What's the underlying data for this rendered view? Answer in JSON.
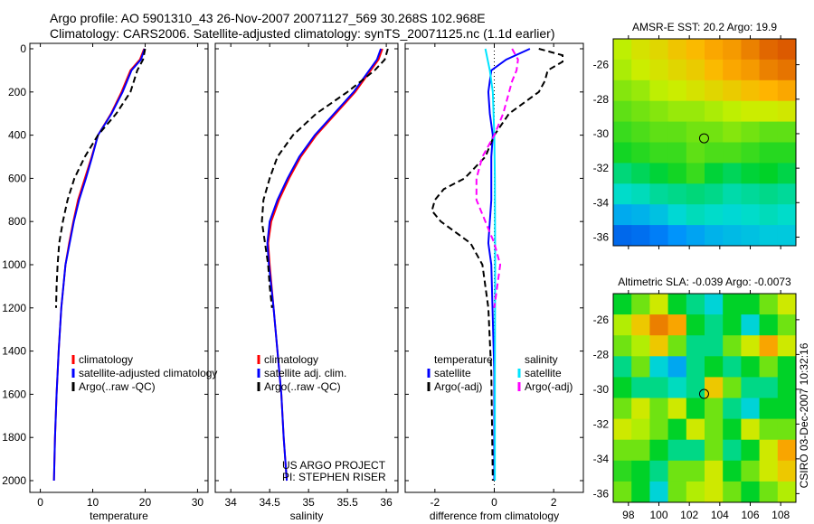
{
  "header": {
    "line1": "Argo profile: AO 5901310_43 26-Nov-2007 20071127_569 30.268S 102.968E",
    "line2": "Climatology: CARS2006. Satellite-adjusted climatology: synTS_20071125.nc (1.1d earlier)"
  },
  "watermark": {
    "project": "US ARGO PROJECT",
    "pi": "PI: STEPHEN RISER",
    "credit": "CSIRO 03-Dec-2007 10:32:16"
  },
  "colors": {
    "clim": "#ff0000",
    "sat": "#0000ff",
    "argo": "#000000",
    "sal_sat": "#00e5ff",
    "sal_argo": "#ff00ff"
  },
  "chart_data": [
    {
      "type": "line",
      "xlabel": "temperature",
      "xlim": [
        -2,
        32
      ],
      "xticks": [
        0,
        10,
        20,
        30
      ],
      "ylim": [
        2050,
        0
      ],
      "yticks": [
        0,
        200,
        400,
        600,
        800,
        1000,
        1200,
        1400,
        1600,
        1800,
        2000
      ],
      "legend": [
        "climatology",
        "satellite-adjusted climatology",
        "Argo(..raw -QC)"
      ],
      "series": [
        {
          "name": "climatology",
          "style": "clim",
          "depth": [
            0,
            50,
            100,
            200,
            300,
            400,
            500,
            600,
            700,
            800,
            900,
            1000,
            1200,
            1400,
            1600,
            1800,
            2000
          ],
          "values": [
            19.8,
            19,
            17.2,
            15.5,
            13.5,
            11,
            9.8,
            8.5,
            7.2,
            6.3,
            5.5,
            4.8,
            4,
            3.5,
            3.1,
            2.8,
            2.6
          ]
        },
        {
          "name": "satellite-adjusted climatology",
          "style": "sat",
          "depth": [
            0,
            50,
            100,
            200,
            300,
            400,
            500,
            600,
            700,
            800,
            900,
            1000,
            1200,
            1400,
            1600,
            1800,
            2000
          ],
          "values": [
            19.9,
            19.2,
            17.4,
            15.7,
            13.6,
            11,
            9.9,
            8.7,
            7.4,
            6.4,
            5.6,
            4.8,
            4,
            3.5,
            3.1,
            2.8,
            2.6
          ]
        },
        {
          "name": "Argo(..raw -QC)",
          "style": "argo",
          "depth": [
            0,
            50,
            100,
            200,
            300,
            400,
            500,
            600,
            700,
            800,
            900,
            1000,
            1100,
            1200
          ],
          "values": [
            20,
            19.6,
            18.5,
            17.2,
            14.5,
            11,
            8.5,
            6.5,
            5.2,
            4.3,
            3.6,
            3.3,
            3.1,
            3.0
          ]
        }
      ]
    },
    {
      "type": "line",
      "xlabel": "salinity",
      "xlim": [
        33.8,
        36.15
      ],
      "xticks": [
        34,
        34.5,
        35,
        35.5,
        36
      ],
      "ylim": [
        2050,
        0
      ],
      "legend": [
        "climatology",
        "satellite adj. clim.",
        "Argo(..raw -QC)"
      ],
      "series": [
        {
          "name": "climatology",
          "style": "clim",
          "depth": [
            0,
            50,
            100,
            200,
            300,
            400,
            500,
            600,
            700,
            800,
            900,
            1000,
            1200,
            1400,
            1600,
            1800,
            2000
          ],
          "values": [
            35.95,
            35.9,
            35.8,
            35.6,
            35.35,
            35.1,
            34.9,
            34.75,
            34.62,
            34.52,
            34.48,
            34.5,
            34.55,
            34.6,
            34.65,
            34.68,
            34.72
          ]
        },
        {
          "name": "satellite adj. clim.",
          "style": "sat",
          "depth": [
            0,
            50,
            100,
            200,
            300,
            400,
            500,
            600,
            700,
            800,
            900,
            1000,
            1200,
            1400,
            1600,
            1800,
            2000
          ],
          "values": [
            35.93,
            35.88,
            35.78,
            35.58,
            35.33,
            35.08,
            34.88,
            34.73,
            34.6,
            34.5,
            34.47,
            34.49,
            34.55,
            34.6,
            34.65,
            34.68,
            34.72
          ]
        },
        {
          "name": "Argo(..raw -QC)",
          "style": "argo",
          "depth": [
            0,
            50,
            100,
            200,
            300,
            400,
            500,
            600,
            700,
            800,
            900,
            1000,
            1100,
            1200
          ],
          "values": [
            36.02,
            35.98,
            35.85,
            35.5,
            35.1,
            34.8,
            34.6,
            34.5,
            34.42,
            34.4,
            34.44,
            34.48,
            34.5,
            34.53
          ]
        }
      ]
    },
    {
      "type": "line",
      "xlabel": "difference from climatology",
      "xlim": [
        -3,
        3
      ],
      "xticks": [
        -2,
        0,
        2
      ],
      "ylim": [
        2050,
        0
      ],
      "legend": [
        "temperature",
        "satellite",
        "Argo(-adj)",
        "salinity",
        "satellite",
        "Argo(-adj)"
      ],
      "series": [
        {
          "name": "temperature satellite",
          "style": "sat",
          "depth": [
            0,
            50,
            100,
            200,
            300,
            400,
            500,
            700,
            900,
            1000,
            1500,
            2000
          ],
          "values": [
            1.2,
            0.4,
            -0.1,
            -0.2,
            -0.15,
            -0.05,
            -0.1,
            -0.1,
            -0.2,
            -0.1,
            0,
            0
          ]
        },
        {
          "name": "temperature Argo(-adj)",
          "style": "argo",
          "depth": [
            0,
            30,
            60,
            100,
            150,
            200,
            300,
            400,
            500,
            600,
            650,
            700,
            750,
            800,
            900,
            1000,
            1200,
            1500,
            2000
          ],
          "values": [
            1.5,
            2.3,
            2.3,
            1.8,
            1.7,
            1.5,
            0.5,
            0,
            -0.3,
            -1,
            -1.7,
            -2,
            -2.1,
            -1.8,
            -0.8,
            -0.4,
            -0.2,
            -0.1,
            -0.05
          ]
        },
        {
          "name": "salinity satellite",
          "style": "sal_sat",
          "depth": [
            0,
            100,
            200,
            400,
            600,
            1000,
            1500,
            2000
          ],
          "values": [
            -0.3,
            -0.15,
            -0.05,
            0,
            0.02,
            0.03,
            0.02,
            0.02
          ]
        },
        {
          "name": "salinity Argo(-adj)",
          "style": "sal_argo",
          "depth": [
            0,
            50,
            100,
            150,
            200,
            300,
            400,
            500,
            600,
            700,
            800,
            900,
            1000,
            1100,
            1200
          ],
          "values": [
            0.6,
            0.8,
            0.75,
            0.6,
            0.5,
            0.3,
            0,
            -0.4,
            -0.6,
            -0.6,
            -0.3,
            0,
            0.2,
            0.1,
            0
          ]
        }
      ]
    },
    {
      "type": "heatmap",
      "title": "AMSR-E SST: 20.2 Argo: 19.9",
      "xticks": [
        98,
        100,
        102,
        104,
        106,
        108
      ],
      "yticks": [
        -26,
        -28,
        -30,
        -32,
        -34,
        -36
      ],
      "lon": [
        97,
        109
      ],
      "lat": [
        -24.5,
        -36.5
      ],
      "marker": [
        102.968,
        -30.268
      ],
      "range": [
        16,
        23
      ],
      "grid": [
        [
          20.5,
          20.8,
          21,
          21.3,
          21.5,
          21.8,
          22,
          22.4,
          22.8,
          23
        ],
        [
          20.4,
          20.6,
          20.8,
          21,
          21.2,
          21.5,
          21.8,
          22,
          22.4,
          22.6
        ],
        [
          20.2,
          20.3,
          20.5,
          20.6,
          20.8,
          21,
          21.2,
          21.4,
          21.6,
          21.8
        ],
        [
          20,
          20.1,
          20.2,
          20.3,
          20.3,
          20.4,
          20.5,
          20.6,
          20.6,
          20.7
        ],
        [
          19.8,
          19.9,
          20,
          20,
          20.1,
          20.1,
          20.2,
          20.1,
          20,
          20
        ],
        [
          19.6,
          19.7,
          19.8,
          19.8,
          20,
          19.9,
          19.9,
          19.8,
          19.7,
          19.7
        ],
        [
          19,
          19.2,
          19.4,
          19.6,
          19.8,
          19.4,
          19.2,
          19.4,
          19.5,
          19.3
        ],
        [
          18.5,
          18.6,
          18.8,
          18.9,
          19,
          18.9,
          18.7,
          18.8,
          18.9,
          18.8
        ],
        [
          17.8,
          17.9,
          18.1,
          18.4,
          18.6,
          18.5,
          18.4,
          18.5,
          18.6,
          18.5
        ],
        [
          16.9,
          17,
          17.2,
          17.5,
          17.7,
          17.9,
          18,
          18.1,
          18.2,
          18.2
        ]
      ]
    },
    {
      "type": "heatmap",
      "title": "Altimetric SLA: -0.039 Argo: -0.0073",
      "xticks": [
        98,
        100,
        102,
        104,
        106,
        108
      ],
      "yticks": [
        -26,
        -28,
        -30,
        -32,
        -34,
        -36
      ],
      "lon": [
        97,
        109
      ],
      "lat": [
        -24.5,
        -36.5
      ],
      "marker": [
        102.968,
        -30.268
      ],
      "range": [
        -0.3,
        0.3
      ],
      "grid": [
        [
          0,
          0.05,
          0.1,
          0,
          -0.05,
          -0.1,
          0,
          0,
          0.05,
          0.1
        ],
        [
          0.08,
          0.15,
          0.25,
          0.2,
          0,
          -0.05,
          0,
          -0.1,
          0,
          0.05
        ],
        [
          0.05,
          0.08,
          0.15,
          0.05,
          -0.05,
          -0.05,
          0.05,
          0.1,
          0.2,
          0.1
        ],
        [
          -0.05,
          0.05,
          -0.1,
          -0.15,
          -0.05,
          0,
          -0.05,
          0,
          0.05,
          0
        ],
        [
          0,
          -0.05,
          -0.05,
          -0.08,
          -0.05,
          0.15,
          0.05,
          -0.05,
          -0.05,
          0
        ],
        [
          0.05,
          0.1,
          0.05,
          0.1,
          0,
          0.05,
          -0.05,
          -0.1,
          0,
          0
        ],
        [
          0.1,
          0.08,
          0.05,
          0,
          0.1,
          0.05,
          0,
          0.1,
          0.05,
          0.05
        ],
        [
          0.05,
          0.05,
          0,
          -0.05,
          -0.05,
          0.05,
          -0.05,
          0,
          0.1,
          0.2
        ],
        [
          0.02,
          0,
          -0.05,
          0.05,
          0.05,
          0.1,
          0,
          0.05,
          0.1,
          0.15
        ],
        [
          0.05,
          0,
          -0.1,
          0.05,
          0.08,
          0.1,
          0.05,
          0,
          0.05,
          0.08
        ]
      ]
    }
  ]
}
